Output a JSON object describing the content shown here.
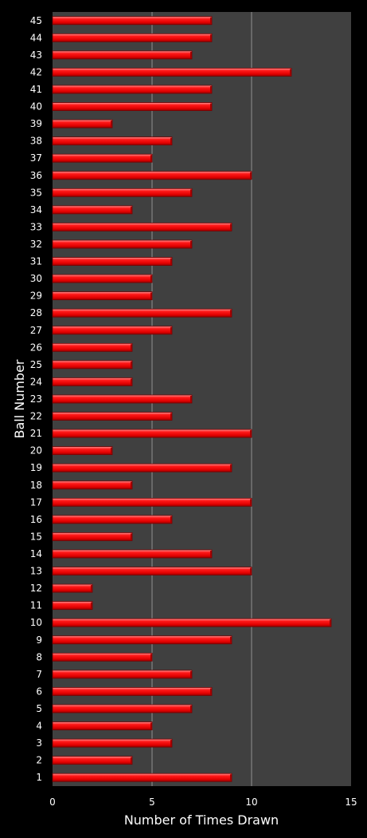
{
  "chart_data": {
    "type": "bar",
    "orientation": "horizontal",
    "xlabel": "Number of Times Drawn",
    "ylabel": "Ball Number",
    "xlim": [
      0,
      15
    ],
    "xticks": [
      "0",
      "5",
      "10",
      "15"
    ],
    "grid": true,
    "colors": {
      "background": "#000000",
      "plot_area": "#404040",
      "bar": "#ff1a1a",
      "bar_dark": "#b00000",
      "bar_light": "#ff8080",
      "gridline": "#909090",
      "text": "#ffffff"
    },
    "categories": [
      "1",
      "2",
      "3",
      "4",
      "5",
      "6",
      "7",
      "8",
      "9",
      "10",
      "11",
      "12",
      "13",
      "14",
      "15",
      "16",
      "17",
      "18",
      "19",
      "20",
      "21",
      "22",
      "23",
      "24",
      "25",
      "26",
      "27",
      "28",
      "29",
      "30",
      "31",
      "32",
      "33",
      "34",
      "35",
      "36",
      "37",
      "38",
      "39",
      "40",
      "41",
      "42",
      "43",
      "44",
      "45"
    ],
    "values": [
      9,
      4,
      6,
      5,
      7,
      8,
      7,
      5,
      9,
      14,
      2,
      2,
      10,
      8,
      4,
      6,
      10,
      4,
      9,
      3,
      10,
      6,
      7,
      4,
      4,
      4,
      6,
      9,
      5,
      5,
      6,
      7,
      9,
      4,
      7,
      10,
      5,
      6,
      3,
      8,
      8,
      12,
      7,
      8,
      8
    ]
  }
}
